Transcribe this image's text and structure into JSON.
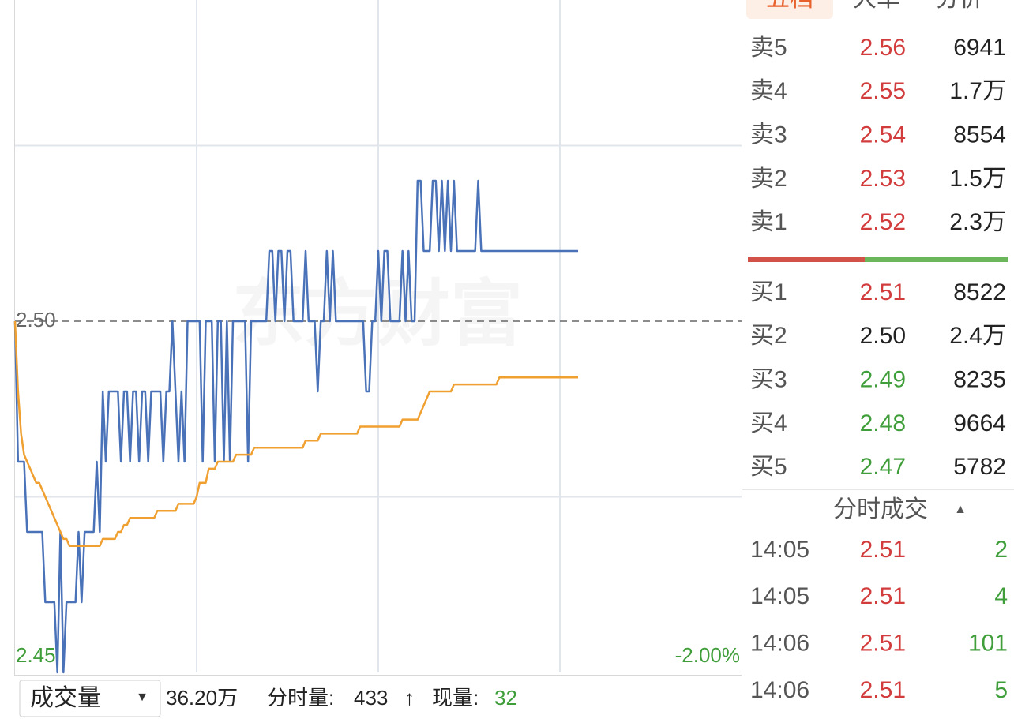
{
  "chart_data": {
    "type": "line",
    "watermark": "东方财富",
    "xlim": [
      0,
      240
    ],
    "xgrid": [
      60,
      120,
      180
    ],
    "ylim": [
      2.45,
      2.55
    ],
    "ygrid": [
      2.475,
      2.525
    ],
    "yticks": [
      2.45,
      {
        "value": 2.5,
        "label": "2.50"
      }
    ],
    "ytick_colors": [
      "#3f9e3a",
      "#666666"
    ],
    "y2lim": [
      -2,
      2
    ],
    "y2ticks": [
      {
        "value": -2,
        "label": "-2.00%"
      }
    ],
    "y2tick_color": "#3f9e3a",
    "series": [
      {
        "color": "#4a72b8",
        "values": [
          2.5,
          2.48,
          2.48,
          2.48,
          2.47,
          2.47,
          2.47,
          2.47,
          2.47,
          2.47,
          2.46,
          2.46,
          2.46,
          2.46,
          2.45,
          2.47,
          2.45,
          2.46,
          2.46,
          2.46,
          2.46,
          2.47,
          2.46,
          2.47,
          2.47,
          2.47,
          2.47,
          2.48,
          2.47,
          2.49,
          2.48,
          2.49,
          2.49,
          2.49,
          2.49,
          2.48,
          2.49,
          2.49,
          2.48,
          2.49,
          2.49,
          2.48,
          2.49,
          2.49,
          2.48,
          2.49,
          2.49,
          2.49,
          2.49,
          2.48,
          2.49,
          2.49,
          2.5,
          2.49,
          2.48,
          2.49,
          2.48,
          2.5,
          2.5,
          2.5,
          2.5,
          2.5,
          2.48,
          2.5,
          2.5,
          2.5,
          2.48,
          2.5,
          2.5,
          2.48,
          2.5,
          2.48,
          2.5,
          2.5,
          2.5,
          2.5,
          2.5,
          2.48,
          2.5,
          2.5,
          2.5,
          2.5,
          2.5,
          2.5,
          2.51,
          2.51,
          2.5,
          2.51,
          2.51,
          2.5,
          2.51,
          2.51,
          2.5,
          2.5,
          2.5,
          2.5,
          2.51,
          2.5,
          2.5,
          2.5,
          2.49,
          2.5,
          2.5,
          2.51,
          2.5,
          2.51,
          2.5,
          2.5,
          2.5,
          2.5,
          2.5,
          2.5,
          2.5,
          2.5,
          2.5,
          2.5,
          2.49,
          2.49,
          2.5,
          2.5,
          2.51,
          2.5,
          2.51,
          2.51,
          2.5,
          2.5,
          2.5,
          2.5,
          2.51,
          2.5,
          2.51,
          2.5,
          2.5,
          2.52,
          2.52,
          2.51,
          2.51,
          2.51,
          2.52,
          2.52,
          2.51,
          2.52,
          2.51,
          2.52,
          2.51,
          2.52,
          2.51,
          2.51,
          2.51,
          2.51,
          2.51,
          2.51,
          2.51,
          2.52,
          2.51,
          2.51,
          2.51,
          2.51,
          2.51,
          2.51,
          2.51,
          2.51,
          2.51,
          2.51,
          2.51,
          2.51,
          2.51,
          2.51,
          2.51,
          2.51,
          2.51,
          2.51,
          2.51,
          2.51,
          2.51,
          2.51,
          2.51,
          2.51,
          2.51,
          2.51,
          2.51,
          2.51,
          2.51,
          2.51,
          2.51,
          2.51,
          2.51
        ]
      },
      {
        "color": "#f0a030",
        "values": [
          2.5,
          2.49,
          2.484,
          2.481,
          2.48,
          2.479,
          2.478,
          2.477,
          2.477,
          2.476,
          2.475,
          2.474,
          2.473,
          2.472,
          2.471,
          2.47,
          2.469,
          2.469,
          2.468,
          2.468,
          2.468,
          2.468,
          2.468,
          2.468,
          2.468,
          2.468,
          2.468,
          2.468,
          2.468,
          2.469,
          2.469,
          2.469,
          2.469,
          2.469,
          2.47,
          2.47,
          2.471,
          2.471,
          2.472,
          2.472,
          2.472,
          2.472,
          2.472,
          2.472,
          2.472,
          2.472,
          2.472,
          2.473,
          2.473,
          2.473,
          2.473,
          2.473,
          2.473,
          2.473,
          2.474,
          2.474,
          2.474,
          2.474,
          2.474,
          2.474,
          2.475,
          2.477,
          2.477,
          2.477,
          2.479,
          2.479,
          2.479,
          2.48,
          2.48,
          2.48,
          2.48,
          2.48,
          2.48,
          2.481,
          2.481,
          2.481,
          2.481,
          2.481,
          2.481,
          2.482,
          2.482,
          2.482,
          2.482,
          2.482,
          2.482,
          2.482,
          2.482,
          2.482,
          2.482,
          2.482,
          2.482,
          2.482,
          2.482,
          2.482,
          2.482,
          2.482,
          2.483,
          2.483,
          2.483,
          2.483,
          2.483,
          2.484,
          2.484,
          2.484,
          2.484,
          2.484,
          2.484,
          2.484,
          2.484,
          2.484,
          2.484,
          2.484,
          2.484,
          2.484,
          2.485,
          2.485,
          2.485,
          2.485,
          2.485,
          2.485,
          2.485,
          2.485,
          2.485,
          2.485,
          2.485,
          2.485,
          2.485,
          2.485,
          2.486,
          2.486,
          2.486,
          2.486,
          2.486,
          2.486,
          2.487,
          2.488,
          2.489,
          2.49,
          2.49,
          2.49,
          2.49,
          2.49,
          2.49,
          2.49,
          2.49,
          2.491,
          2.491,
          2.491,
          2.491,
          2.491,
          2.491,
          2.491,
          2.491,
          2.491,
          2.491,
          2.491,
          2.491,
          2.491,
          2.491,
          2.491,
          2.492,
          2.492,
          2.492,
          2.492,
          2.492,
          2.492,
          2.492,
          2.492,
          2.492,
          2.492,
          2.492,
          2.492,
          2.492,
          2.492,
          2.492,
          2.492,
          2.492,
          2.492,
          2.492,
          2.492,
          2.492,
          2.492,
          2.492,
          2.492,
          2.492,
          2.492,
          2.492
        ]
      }
    ]
  },
  "footer": {
    "selector": "成交量",
    "selector_arrow": "▼",
    "total": "36.20万",
    "minute_volume_label": "分时量:",
    "minute_volume": "433",
    "arrow": "↑",
    "current_label": "现量:",
    "current": "32"
  },
  "tabs": [
    "五档",
    "大单",
    "分价"
  ],
  "asks": [
    {
      "label": "卖5",
      "price": "2.56",
      "volume": "6941",
      "color": "#d23c3c"
    },
    {
      "label": "卖4",
      "price": "2.55",
      "volume": "1.7万",
      "color": "#d23c3c"
    },
    {
      "label": "卖3",
      "price": "2.54",
      "volume": "8554",
      "color": "#d23c3c"
    },
    {
      "label": "卖2",
      "price": "2.53",
      "volume": "1.5万",
      "color": "#d23c3c"
    },
    {
      "label": "卖1",
      "price": "2.52",
      "volume": "2.3万",
      "color": "#d23c3c"
    }
  ],
  "bids": [
    {
      "label": "买1",
      "price": "2.51",
      "volume": "8522",
      "color": "#d23c3c"
    },
    {
      "label": "买2",
      "price": "2.50",
      "volume": "2.4万",
      "color": "#222222"
    },
    {
      "label": "买3",
      "price": "2.49",
      "volume": "8235",
      "color": "#3f9e3a"
    },
    {
      "label": "买4",
      "price": "2.48",
      "volume": "9664",
      "color": "#3f9e3a"
    },
    {
      "label": "买5",
      "price": "2.47",
      "volume": "5782",
      "color": "#3f9e3a"
    }
  ],
  "trades_header": {
    "title": "分时成交",
    "arrow": "▲"
  },
  "trades": [
    {
      "time": "14:05",
      "price": "2.51",
      "volume": "2",
      "color": "#3f9e3a"
    },
    {
      "time": "14:05",
      "price": "2.51",
      "volume": "4",
      "color": "#3f9e3a"
    },
    {
      "time": "14:06",
      "price": "2.51",
      "volume": "101",
      "color": "#3f9e3a"
    },
    {
      "time": "14:06",
      "price": "2.51",
      "volume": "5",
      "color": "#3f9e3a"
    }
  ]
}
